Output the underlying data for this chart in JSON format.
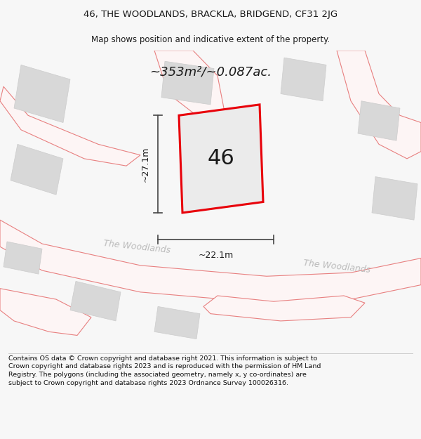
{
  "title_line1": "46, THE WOODLANDS, BRACKLA, BRIDGEND, CF31 2JG",
  "title_line2": "Map shows position and indicative extent of the property.",
  "area_text": "~353m²/~0.087ac.",
  "label_46": "46",
  "dim_vertical": "~27.1m",
  "dim_horizontal": "~22.1m",
  "road_label1": "The Woodlands",
  "road_label2": "The Woodlands",
  "footer_text": "Contains OS data © Crown copyright and database right 2021. This information is subject to Crown copyright and database rights 2023 and is reproduced with the permission of HM Land Registry. The polygons (including the associated geometry, namely x, y co-ordinates) are subject to Crown copyright and database rights 2023 Ordnance Survey 100026316.",
  "bg_color": "#f7f7f7",
  "map_bg": "#ffffff",
  "plot_color_red": "#e8000a",
  "building_fill": "#d8d8d8",
  "building_edge": "#cccccc",
  "road_fill": "#f5f5f5",
  "road_outline": "#e88080",
  "text_color_dark": "#1a1a1a",
  "text_color_road": "#bbbbbb",
  "dim_color": "#444444",
  "footer_color": "#111111"
}
